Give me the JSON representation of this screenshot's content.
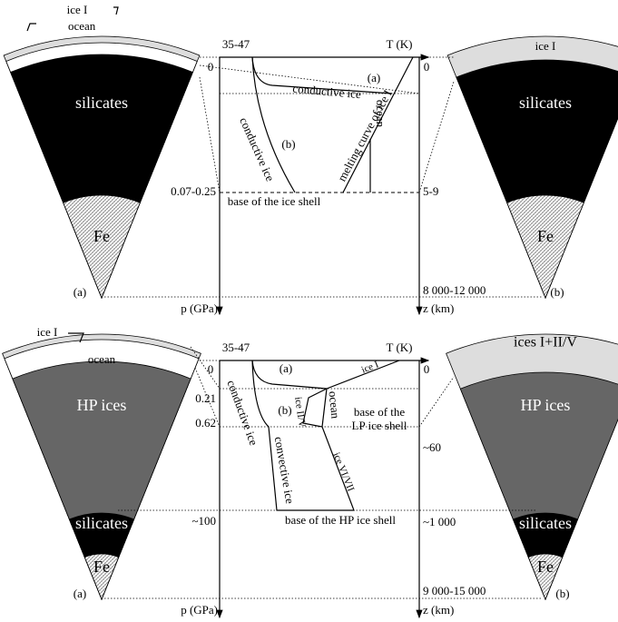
{
  "panels": [
    {
      "left_wedge": {
        "ice_label": "ice I",
        "ocean_label": "ocean",
        "layers": [
          "silicates",
          "Fe"
        ],
        "tag": "(a)"
      },
      "right_wedge": {
        "layers": [
          "ice I",
          "silicates",
          "Fe"
        ],
        "tag": "(b)"
      },
      "profile": {
        "t_min": "35-47",
        "t_axis": "T (K)",
        "p_axis": "p (GPa)",
        "z_axis": "z (km)",
        "p_labels": [
          "0",
          "0.07-0.25"
        ],
        "z_labels": [
          "0",
          "5-9",
          "8 000-12 000"
        ],
        "curve_labels": [
          "(a)",
          "conductive ice",
          "(b)",
          "conductive ice",
          "melting curve of ice I",
          "ocean"
        ],
        "base_label": "base of the ice shell"
      }
    },
    {
      "left_wedge": {
        "ice_label": "ice I",
        "ocean_label": "ocean",
        "layers": [
          "HP ices",
          "silicates",
          "Fe"
        ],
        "tag": "(a)"
      },
      "right_wedge": {
        "layers": [
          "ices I+II/V",
          "HP ices",
          "silicates",
          "Fe"
        ],
        "tag": "(b)"
      },
      "profile": {
        "t_min": "35-47",
        "t_axis": "T (K)",
        "p_axis": "p (GPa)",
        "z_axis": "z (km)",
        "p_labels": [
          "0",
          "0.21",
          "0.62",
          "~100"
        ],
        "z_labels": [
          "0",
          "~60",
          "~1 000",
          "9 000-15 000"
        ],
        "curve_labels": [
          "(a)",
          "ice I",
          "conductive ice",
          "(b)",
          "ice II/V",
          "ocean",
          "convective ice",
          "ice VI/VII"
        ],
        "lp_base": [
          "base of the",
          "LP ice shell"
        ],
        "base_label": "base of the HP ice shell"
      }
    }
  ]
}
